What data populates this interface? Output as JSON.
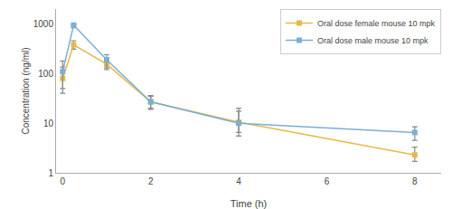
{
  "chart_data": {
    "type": "line",
    "x": [
      0,
      0.25,
      1,
      2,
      4,
      8
    ],
    "series": [
      {
        "name": "Oral dose female mouse 10 mpk",
        "color": "#E8B84B",
        "marker": "square",
        "values": [
          80,
          380,
          155,
          27,
          10.5,
          2.3
        ],
        "error_low": [
          30,
          70,
          35,
          7,
          4,
          0.6
        ],
        "error_high": [
          55,
          80,
          40,
          8,
          7,
          1.0
        ]
      },
      {
        "name": "Oral dose male mouse 10 mpk",
        "color": "#7BAFD4",
        "marker": "square",
        "values": [
          110,
          950,
          190,
          27,
          10,
          6.5
        ],
        "error_low": [
          70,
          110,
          60,
          8,
          4.5,
          2.0
        ],
        "error_high": [
          70,
          1,
          50,
          9,
          10,
          2.0
        ]
      }
    ],
    "xlabel": "Time (h)",
    "ylabel": "Concentration (ng/ml)",
    "xlim": [
      -0.15,
      8.6
    ],
    "ylim": [
      1,
      2000
    ],
    "xticks": [
      0,
      2,
      4,
      6,
      8
    ],
    "yticks": [
      1,
      10,
      100,
      1000
    ],
    "log": "y",
    "grid": false,
    "legend": "upper right"
  }
}
